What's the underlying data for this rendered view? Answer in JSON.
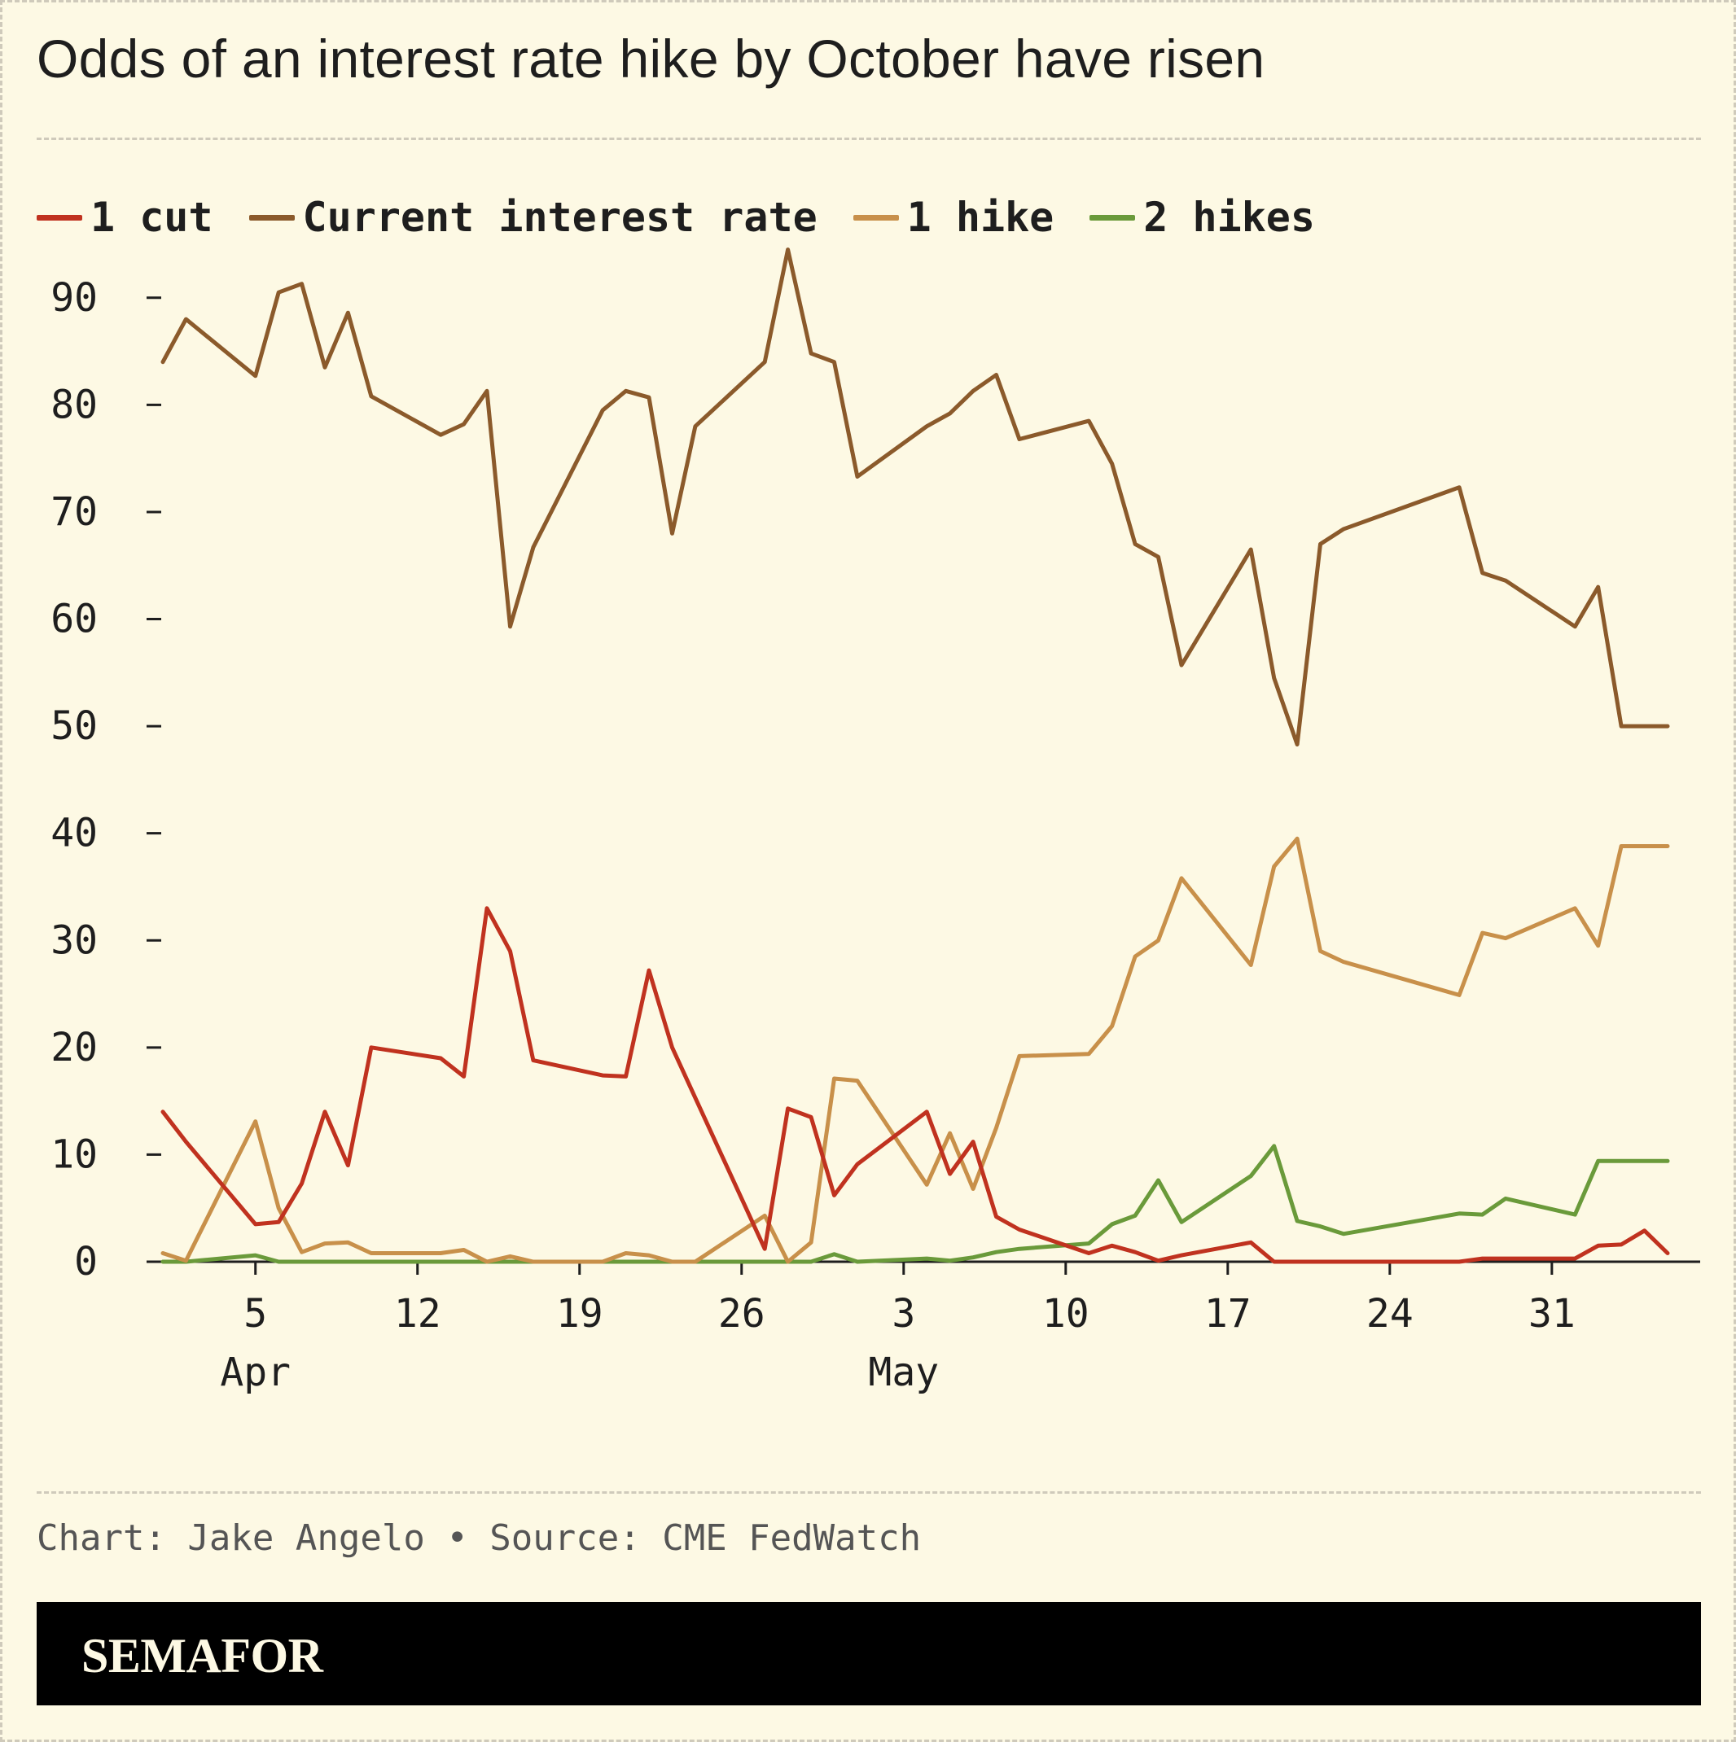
{
  "title": "Odds of an interest rate hike by October have risen",
  "source": "Chart: Jake Angelo • Source: CME FedWatch",
  "brand": "SEMAFOR",
  "colors": {
    "background": "#fdf9e4",
    "axis": "#1e1e1e"
  },
  "chart_data": {
    "type": "line",
    "title": "Odds of an interest rate hike by October have risen",
    "xlabel": "",
    "ylabel": "",
    "ylim": [
      0,
      95
    ],
    "y_ticks": [
      0,
      10,
      20,
      30,
      40,
      50,
      60,
      70,
      80,
      90
    ],
    "x_ticks": [
      {
        "date": "2023-04-05",
        "label": "5",
        "month": "Apr"
      },
      {
        "date": "2023-04-12",
        "label": "12",
        "month": ""
      },
      {
        "date": "2023-04-19",
        "label": "19",
        "month": ""
      },
      {
        "date": "2023-04-26",
        "label": "26",
        "month": ""
      },
      {
        "date": "2023-05-03",
        "label": "3",
        "month": "May"
      },
      {
        "date": "2023-05-10",
        "label": "10",
        "month": ""
      },
      {
        "date": "2023-05-17",
        "label": "17",
        "month": ""
      },
      {
        "date": "2023-05-24",
        "label": "24",
        "month": ""
      },
      {
        "date": "2023-05-31",
        "label": "31",
        "month": ""
      }
    ],
    "x_range": [
      "2023-04-01",
      "2023-06-05"
    ],
    "legend_position": "top-left",
    "grid": false,
    "x": [
      "2023-04-01",
      "2023-04-02",
      "2023-04-05",
      "2023-04-06",
      "2023-04-07",
      "2023-04-08",
      "2023-04-09",
      "2023-04-10",
      "2023-04-13",
      "2023-04-14",
      "2023-04-15",
      "2023-04-16",
      "2023-04-17",
      "2023-04-20",
      "2023-04-21",
      "2023-04-22",
      "2023-04-23",
      "2023-04-24",
      "2023-04-27",
      "2023-04-28",
      "2023-04-29",
      "2023-04-30",
      "2023-05-01",
      "2023-05-04",
      "2023-05-05",
      "2023-05-06",
      "2023-05-07",
      "2023-05-08",
      "2023-05-11",
      "2023-05-12",
      "2023-05-13",
      "2023-05-14",
      "2023-05-15",
      "2023-05-18",
      "2023-05-19",
      "2023-05-20",
      "2023-05-21",
      "2023-05-22",
      "2023-05-27",
      "2023-05-28",
      "2023-05-29",
      "2023-06-01",
      "2023-06-02",
      "2023-06-03",
      "2023-06-04",
      "2023-06-05"
    ],
    "series": [
      {
        "name": "1 cut",
        "color": "#c0321f",
        "values": [
          14.0,
          11.2,
          3.5,
          3.7,
          7.3,
          14.0,
          9.0,
          20.0,
          19.0,
          17.3,
          33.0,
          29.0,
          18.8,
          17.4,
          17.3,
          27.2,
          20.0,
          15.3,
          1.2,
          14.3,
          13.5,
          6.2,
          9.1,
          14.0,
          8.2,
          11.2,
          4.2,
          3.0,
          0.8,
          1.5,
          0.9,
          0.1,
          0.6,
          1.8,
          0.0,
          0.0,
          0.0,
          0.0,
          0.0,
          0.3,
          0.3,
          0.3,
          1.5,
          1.6,
          2.9,
          0.8
        ]
      },
      {
        "name": "Current interest rate",
        "color": "#8b5a2b",
        "values": [
          84.0,
          88.0,
          82.7,
          90.5,
          91.3,
          83.5,
          88.6,
          80.8,
          77.2,
          78.2,
          81.3,
          59.3,
          66.7,
          79.5,
          81.3,
          80.7,
          68.0,
          78.0,
          84.0,
          94.5,
          84.8,
          84.0,
          73.3,
          78.0,
          79.2,
          81.3,
          82.8,
          76.8,
          78.5,
          74.5,
          67.0,
          65.8,
          55.7,
          66.5,
          54.5,
          48.3,
          67.0,
          68.4,
          72.3,
          64.3,
          63.6,
          59.3,
          63.0,
          50.0,
          50.0,
          50.0
        ]
      },
      {
        "name": "1 hike",
        "color": "#c8904a",
        "values": [
          0.8,
          0.1,
          13.1,
          5.0,
          0.9,
          1.7,
          1.8,
          0.8,
          0.8,
          1.1,
          0.0,
          0.5,
          0.0,
          0.0,
          0.8,
          0.6,
          0.0,
          0.0,
          4.3,
          0.0,
          1.8,
          17.1,
          16.9,
          7.2,
          12.0,
          6.8,
          12.5,
          19.2,
          19.4,
          22.0,
          28.5,
          30.0,
          35.8,
          27.7,
          36.9,
          39.5,
          29.0,
          28.0,
          24.9,
          30.7,
          30.2,
          33.0,
          29.5,
          38.8,
          38.8,
          38.8
        ]
      },
      {
        "name": "2 hikes",
        "color": "#6a9a3a",
        "values": [
          0.0,
          0.0,
          0.6,
          0.0,
          0.0,
          0.0,
          0.0,
          0.0,
          0.0,
          0.0,
          0.0,
          0.0,
          0.0,
          0.0,
          0.0,
          0.0,
          0.0,
          0.0,
          0.0,
          0.0,
          0.0,
          0.7,
          0.0,
          0.3,
          0.1,
          0.4,
          0.9,
          1.2,
          1.7,
          3.5,
          4.3,
          7.6,
          3.7,
          8.0,
          10.8,
          3.8,
          3.3,
          2.6,
          4.5,
          4.4,
          5.9,
          4.4,
          9.4,
          9.4,
          9.4,
          9.4
        ]
      }
    ]
  }
}
